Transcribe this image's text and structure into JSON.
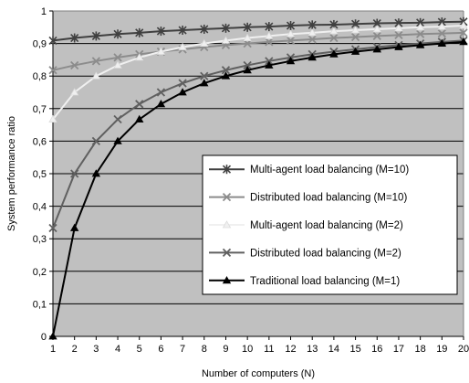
{
  "chart_data": {
    "type": "line",
    "xlabel": "Number of computers (N)",
    "ylabel": "System performance ratio",
    "x": [
      1,
      2,
      3,
      4,
      5,
      6,
      7,
      8,
      9,
      10,
      11,
      12,
      13,
      14,
      15,
      16,
      17,
      18,
      19,
      20
    ],
    "xlim": [
      1,
      20
    ],
    "ylim": [
      0,
      1
    ],
    "y_tick_labels": [
      "0",
      "0,1",
      "0,2",
      "0,3",
      "0,4",
      "0,5",
      "0,6",
      "0,7",
      "0,8",
      "0,9",
      "1"
    ],
    "x_tick_labels": [
      "1",
      "2",
      "3",
      "4",
      "5",
      "6",
      "7",
      "8",
      "9",
      "10",
      "11",
      "12",
      "13",
      "14",
      "15",
      "16",
      "17",
      "18",
      "19",
      "20"
    ],
    "grid": "horizontal",
    "legend_position": "bottom-right",
    "series": [
      {
        "name": "Multi-agent load balancing (M=10)",
        "color": "#404040",
        "marker": "asterisk",
        "values": [
          0.909,
          0.917,
          0.923,
          0.929,
          0.933,
          0.938,
          0.941,
          0.944,
          0.947,
          0.95,
          0.952,
          0.955,
          0.957,
          0.958,
          0.96,
          0.962,
          0.963,
          0.964,
          0.966,
          0.967
        ]
      },
      {
        "name": "Distributed load balancing (M=10)",
        "color": "#8c8c8c",
        "marker": "x",
        "values": [
          0.818,
          0.833,
          0.846,
          0.857,
          0.867,
          0.875,
          0.882,
          0.889,
          0.895,
          0.9,
          0.905,
          0.909,
          0.913,
          0.917,
          0.92,
          0.923,
          0.926,
          0.929,
          0.931,
          0.933
        ]
      },
      {
        "name": "Multi-agent load balancing (M=2)",
        "color": "#f0f0f0",
        "marker": "triangle",
        "values": [
          0.667,
          0.75,
          0.8,
          0.833,
          0.857,
          0.875,
          0.889,
          0.9,
          0.909,
          0.917,
          0.923,
          0.929,
          0.933,
          0.938,
          0.941,
          0.944,
          0.947,
          0.95,
          0.952,
          0.955
        ]
      },
      {
        "name": "Distributed load balancing (M=2)",
        "color": "#606060",
        "marker": "x",
        "values": [
          0.333,
          0.5,
          0.6,
          0.667,
          0.714,
          0.75,
          0.778,
          0.8,
          0.818,
          0.833,
          0.846,
          0.857,
          0.867,
          0.875,
          0.882,
          0.889,
          0.895,
          0.9,
          0.905,
          0.909
        ]
      },
      {
        "name": "Traditional load balancing (M=1)",
        "color": "#000000",
        "marker": "triangle",
        "values": [
          0,
          0.333,
          0.5,
          0.6,
          0.667,
          0.714,
          0.75,
          0.778,
          0.8,
          0.818,
          0.833,
          0.846,
          0.857,
          0.867,
          0.875,
          0.882,
          0.889,
          0.895,
          0.9,
          0.905
        ]
      }
    ]
  },
  "colors": {
    "plot_background": "#c0c0c0",
    "gridline": "#000000",
    "legend_background": "#ffffff"
  }
}
